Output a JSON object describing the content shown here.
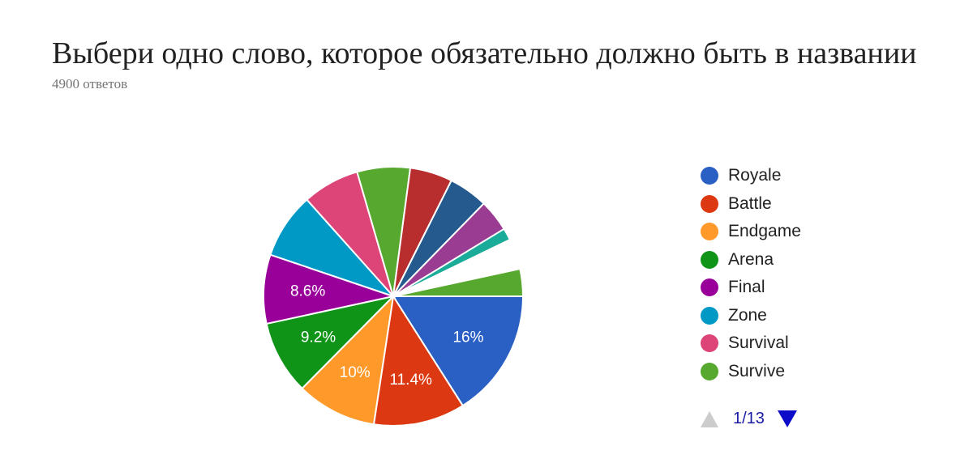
{
  "header": {
    "title": "Выбери одно слово, которое обязательно должно быть в названии",
    "responses": "4900 ответов"
  },
  "chart_data": {
    "type": "pie",
    "slices": [
      {
        "name": "Royale",
        "value": 16,
        "label": "16%",
        "color": "#2a5fc4"
      },
      {
        "name": "Battle",
        "value": 11.4,
        "label": "11.4%",
        "color": "#dc3912"
      },
      {
        "name": "Endgame",
        "value": 10,
        "label": "10%",
        "color": "#ff9929"
      },
      {
        "name": "Arena",
        "value": 9.2,
        "label": "9.2%",
        "color": "#0f9418"
      },
      {
        "name": "Final",
        "value": 8.6,
        "label": "8.6%",
        "color": "#990099"
      },
      {
        "name": "Zone",
        "value": 8.2,
        "label": "",
        "color": "#0099c6"
      },
      {
        "name": "Survival",
        "value": 7.1,
        "label": "",
        "color": "#dd4477"
      },
      {
        "name": "Survive",
        "value": 6.6,
        "label": "",
        "color": "#56a82f"
      },
      {
        "name": "",
        "value": 5.3,
        "label": "",
        "color": "#b82e2e"
      },
      {
        "name": "",
        "value": 4.9,
        "label": "",
        "color": "#245a8e"
      },
      {
        "name": "",
        "value": 4.0,
        "label": "",
        "color": "#9a3d92"
      },
      {
        "name": "",
        "value": 1.5,
        "label": "",
        "color": "#1aab99"
      },
      {
        "name": "",
        "value": 3.8,
        "label": "",
        "color": "#ffffff"
      },
      {
        "name": "",
        "value": 3.4,
        "label": "",
        "color": "#56a82f"
      }
    ],
    "legend": [
      "Royale",
      "Battle",
      "Endgame",
      "Arena",
      "Final",
      "Zone",
      "Survival",
      "Survive"
    ],
    "legend_position": "right"
  },
  "legend_colors": [
    "#2a5fc4",
    "#dc3912",
    "#ff9929",
    "#0f9418",
    "#990099",
    "#0099c6",
    "#dd4477",
    "#56a82f"
  ],
  "pager": {
    "text": "1/13",
    "prev_icon": "triangle-up-icon",
    "next_icon": "triangle-down-icon"
  }
}
